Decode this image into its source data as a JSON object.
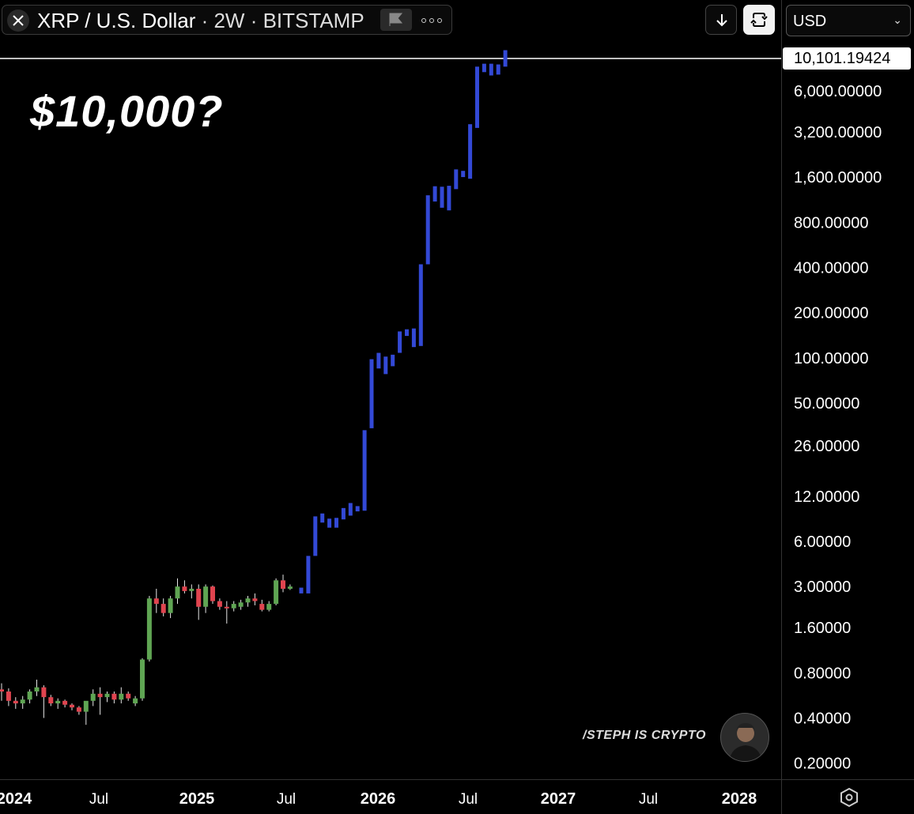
{
  "toolbar": {
    "symbol": "XRP / U.S. Dollar",
    "interval": "· 2W · BITSTAMP",
    "icons": [
      "close-icon",
      "flag-icon",
      "more-icon",
      "download-icon",
      "cycle-icon"
    ]
  },
  "currency": {
    "selected": "USD"
  },
  "headline": "$10,000?",
  "price_label": "10,101.19424",
  "watermark": "/STEPH IS CRYPTO",
  "colors": {
    "up": "#5fa553",
    "down": "#e0444f",
    "projection": "#3349d6",
    "line": "#ffffff",
    "background": "#000000"
  },
  "chart_data": {
    "type": "candlestick",
    "title": "",
    "y_scale": "log",
    "y_ticks": [
      "6,000.00000",
      "3,200.00000",
      "1,600.00000",
      "800.00000",
      "400.00000",
      "200.00000",
      "100.00000",
      "50.00000",
      "26.00000",
      "12.00000",
      "6.00000",
      "3.00000",
      "1.60000",
      "0.80000",
      "0.40000",
      "0.20000"
    ],
    "x_ticks": [
      "2024",
      "Jul",
      "2025",
      "Jul",
      "2026",
      "Jul",
      "2027",
      "Jul",
      "2028"
    ],
    "horizontal_line": 10101.19424,
    "historical_candles": [
      [
        0.62,
        0.68,
        0.52,
        0.6
      ],
      [
        0.6,
        0.63,
        0.48,
        0.52
      ],
      [
        0.52,
        0.55,
        0.46,
        0.5
      ],
      [
        0.5,
        0.56,
        0.46,
        0.53
      ],
      [
        0.53,
        0.62,
        0.5,
        0.6
      ],
      [
        0.6,
        0.72,
        0.56,
        0.64
      ],
      [
        0.64,
        0.66,
        0.4,
        0.55
      ],
      [
        0.55,
        0.57,
        0.48,
        0.5
      ],
      [
        0.5,
        0.54,
        0.46,
        0.52
      ],
      [
        0.52,
        0.53,
        0.47,
        0.49
      ],
      [
        0.49,
        0.5,
        0.45,
        0.47
      ],
      [
        0.47,
        0.48,
        0.42,
        0.44
      ],
      [
        0.44,
        0.48,
        0.36,
        0.52
      ],
      [
        0.52,
        0.62,
        0.48,
        0.58
      ],
      [
        0.58,
        0.64,
        0.42,
        0.55
      ],
      [
        0.55,
        0.6,
        0.51,
        0.58
      ],
      [
        0.58,
        0.6,
        0.5,
        0.53
      ],
      [
        0.53,
        0.64,
        0.5,
        0.58
      ],
      [
        0.58,
        0.6,
        0.52,
        0.54
      ],
      [
        0.5,
        0.56,
        0.48,
        0.54
      ],
      [
        0.54,
        1.0,
        0.52,
        0.98
      ],
      [
        0.98,
        2.6,
        0.95,
        2.5
      ],
      [
        2.5,
        2.9,
        2.0,
        2.3
      ],
      [
        2.3,
        2.5,
        1.9,
        2.0
      ],
      [
        2.0,
        2.6,
        1.85,
        2.5
      ],
      [
        2.5,
        3.4,
        2.3,
        3.0
      ],
      [
        3.0,
        3.3,
        2.7,
        2.8
      ],
      [
        2.8,
        3.1,
        2.5,
        2.9
      ],
      [
        2.9,
        3.1,
        1.8,
        2.2
      ],
      [
        2.2,
        3.1,
        2.0,
        3.0
      ],
      [
        3.0,
        3.05,
        2.3,
        2.4
      ],
      [
        2.4,
        2.5,
        2.1,
        2.2
      ],
      [
        2.2,
        2.4,
        1.7,
        2.15
      ],
      [
        2.15,
        2.4,
        2.05,
        2.3
      ],
      [
        2.2,
        2.45,
        2.1,
        2.35
      ],
      [
        2.35,
        2.6,
        2.2,
        2.5
      ],
      [
        2.5,
        2.7,
        2.25,
        2.4
      ],
      [
        2.3,
        2.45,
        2.05,
        2.1
      ],
      [
        2.1,
        2.4,
        2.05,
        2.3
      ],
      [
        2.3,
        3.4,
        2.25,
        3.3
      ],
      [
        3.3,
        3.6,
        2.75,
        2.9
      ],
      [
        2.9,
        3.1,
        2.85,
        3.0
      ]
    ],
    "projection_bars": [
      [
        2.7,
        2.95
      ],
      [
        2.7,
        4.8
      ],
      [
        4.8,
        8.8
      ],
      [
        8.0,
        9.2
      ],
      [
        7.4,
        8.5
      ],
      [
        7.4,
        8.6
      ],
      [
        8.4,
        10.0
      ],
      [
        8.9,
        10.8
      ],
      [
        9.5,
        10.3
      ],
      [
        9.6,
        33.0
      ],
      [
        34.0,
        98.0
      ],
      [
        85.0,
        108.0
      ],
      [
        78.0,
        102.0
      ],
      [
        88.0,
        105.0
      ],
      [
        108.0,
        150.0
      ],
      [
        140.0,
        155.0
      ],
      [
        118.0,
        157.0
      ],
      [
        120.0,
        420.0
      ],
      [
        420.0,
        1210.0
      ],
      [
        1100.0,
        1390.0
      ],
      [
        1000.0,
        1380.0
      ],
      [
        960.0,
        1400.0
      ],
      [
        1330.0,
        1800.0
      ],
      [
        1600.0,
        1760.0
      ],
      [
        1560.0,
        3600.0
      ],
      [
        3400.0,
        8700.0
      ],
      [
        8000.0,
        9100.0
      ],
      [
        7600.0,
        9100.0
      ],
      [
        7700.0,
        9000.0
      ],
      [
        8700.0,
        11200.0
      ]
    ]
  }
}
